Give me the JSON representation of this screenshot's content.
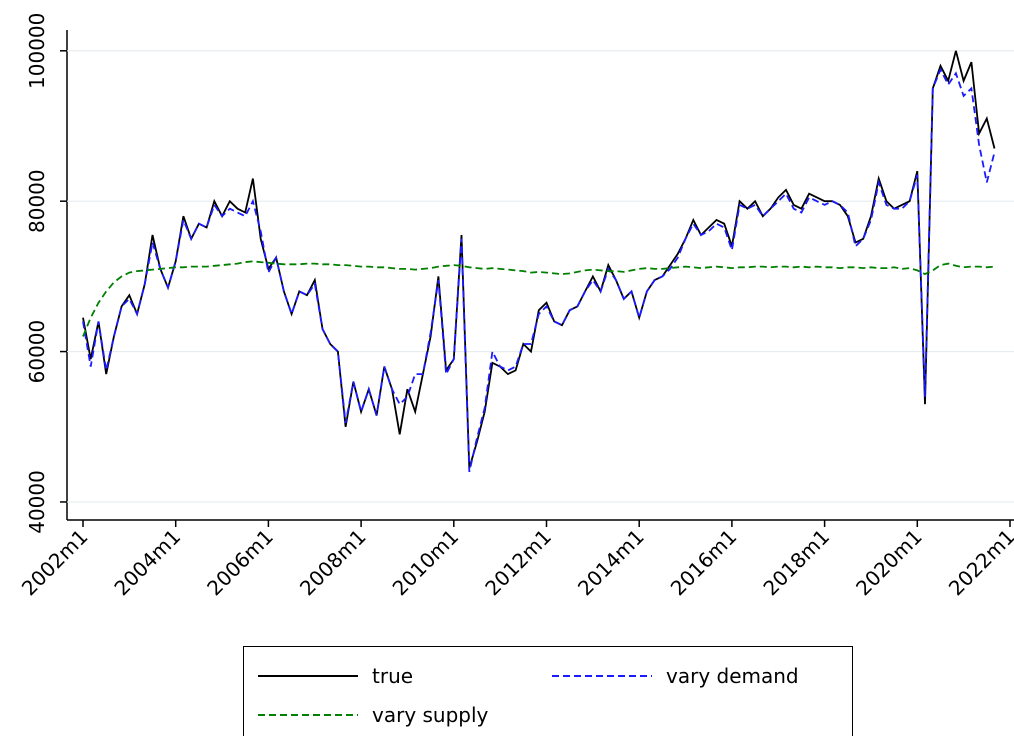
{
  "chart_data": {
    "type": "line",
    "categories": [
      "2002m1",
      null,
      null,
      null,
      null,
      null,
      null,
      null,
      null,
      null,
      null,
      null,
      "2004m1",
      null,
      null,
      null,
      null,
      null,
      null,
      null,
      null,
      null,
      null,
      null,
      "2006m1",
      null,
      null,
      null,
      null,
      null,
      null,
      null,
      null,
      null,
      null,
      null,
      "2008m1",
      null,
      null,
      null,
      null,
      null,
      null,
      null,
      null,
      null,
      null,
      null,
      "2010m1",
      null,
      null,
      null,
      null,
      null,
      null,
      null,
      null,
      null,
      null,
      null,
      "2012m1",
      null,
      null,
      null,
      null,
      null,
      null,
      null,
      null,
      null,
      null,
      null,
      "2014m1",
      null,
      null,
      null,
      null,
      null,
      null,
      null,
      null,
      null,
      null,
      null,
      "2016m1",
      null,
      null,
      null,
      null,
      null,
      null,
      null,
      null,
      null,
      null,
      null,
      "2018m1",
      null,
      null,
      null,
      null,
      null,
      null,
      null,
      null,
      null,
      null,
      null,
      "2020m1",
      null,
      null,
      null,
      null,
      null,
      null,
      null,
      null,
      null,
      null,
      null,
      "2022m1"
    ],
    "series": [
      {
        "name": "true",
        "color": "#000000",
        "dash": "none",
        "values": [
          64500,
          59000,
          64000,
          57000,
          62000,
          66000,
          67500,
          65000,
          69000,
          75500,
          71000,
          68500,
          72000,
          78000,
          75000,
          77000,
          76500,
          80000,
          78000,
          80000,
          79000,
          78500,
          83000,
          75000,
          71000,
          72500,
          68000,
          65000,
          68000,
          67500,
          69500,
          63000,
          61000,
          60000,
          50000,
          56000,
          52000,
          55000,
          51500,
          58000,
          55000,
          49000,
          55000,
          52000,
          57000,
          62000,
          70000,
          57500,
          59000,
          75500,
          44500,
          48000,
          52000,
          58500,
          58000,
          57000,
          57500,
          61000,
          60000,
          65500,
          66500,
          64000,
          63500,
          65500,
          66000,
          68000,
          70000,
          68000,
          71500,
          69500,
          67000,
          68000,
          64500,
          68000,
          69500,
          70000,
          71500,
          73000,
          75000,
          77500,
          75500,
          76500,
          77500,
          77000,
          74000,
          80000,
          79000,
          80000,
          78000,
          79000,
          80500,
          81500,
          79500,
          79000,
          81000,
          80500,
          80000,
          80000,
          79500,
          78000,
          74500,
          75000,
          78000,
          83000,
          80000,
          79000,
          79500,
          80000,
          84000,
          53000,
          95000,
          98000,
          96000,
          100000,
          96000,
          98500,
          89000,
          91000,
          87000,
          null,
          null
        ]
      },
      {
        "name": "vary demand",
        "color": "#1a1aff",
        "dash": "dashed",
        "values": [
          64000,
          58000,
          64000,
          57500,
          62000,
          66000,
          67000,
          65000,
          69000,
          74500,
          71000,
          68500,
          72000,
          77500,
          75000,
          77000,
          76500,
          79500,
          78000,
          79000,
          78500,
          78000,
          80000,
          76000,
          70500,
          72500,
          68000,
          65000,
          68000,
          67500,
          69000,
          63000,
          61000,
          60000,
          50500,
          56000,
          52000,
          55000,
          51500,
          58000,
          55000,
          53000,
          54000,
          57000,
          57000,
          62500,
          69500,
          57000,
          59000,
          75000,
          44000,
          48500,
          52500,
          60000,
          58000,
          57500,
          58000,
          61000,
          61000,
          65000,
          66000,
          64000,
          63500,
          65500,
          66000,
          68000,
          69500,
          68000,
          71000,
          69500,
          67000,
          68000,
          64500,
          68000,
          69500,
          70000,
          71000,
          72500,
          75000,
          77000,
          75500,
          76000,
          77000,
          76500,
          73500,
          79500,
          79000,
          79500,
          78000,
          79000,
          80000,
          81000,
          79000,
          78500,
          80500,
          80000,
          79500,
          80000,
          79500,
          78500,
          74000,
          75000,
          77500,
          82500,
          79500,
          79000,
          79000,
          80000,
          83500,
          54000,
          95000,
          97500,
          95500,
          97000,
          94000,
          95000,
          87500,
          82500,
          86500,
          null,
          null
        ]
      },
      {
        "name": "vary supply",
        "color": "#008000",
        "dash": "dashed",
        "values": [
          62000,
          64500,
          66500,
          68000,
          69200,
          70000,
          70500,
          70700,
          70800,
          70900,
          71000,
          71100,
          71200,
          71200,
          71300,
          71300,
          71300,
          71400,
          71500,
          71600,
          71700,
          71900,
          72000,
          71900,
          71800,
          71700,
          71600,
          71600,
          71600,
          71700,
          71700,
          71600,
          71600,
          71500,
          71500,
          71400,
          71300,
          71300,
          71200,
          71200,
          71100,
          71000,
          71000,
          70900,
          71000,
          71100,
          71300,
          71400,
          71500,
          71400,
          71200,
          71100,
          71000,
          71100,
          71000,
          70900,
          70800,
          70700,
          70500,
          70600,
          70500,
          70400,
          70300,
          70400,
          70600,
          70800,
          70900,
          70800,
          70700,
          70700,
          70600,
          70800,
          71000,
          71100,
          71000,
          71000,
          71100,
          71200,
          71300,
          71200,
          71100,
          71200,
          71300,
          71200,
          71100,
          71200,
          71200,
          71300,
          71300,
          71200,
          71300,
          71300,
          71200,
          71300,
          71200,
          71300,
          71200,
          71200,
          71100,
          71200,
          71200,
          71100,
          71200,
          71100,
          71100,
          71200,
          71000,
          71100,
          70800,
          70300,
          70800,
          71500,
          71700,
          71400,
          71200,
          71300,
          71300,
          71200,
          71300,
          null,
          null
        ]
      }
    ],
    "ylim": [
      37600,
      102100
    ],
    "yticks": [
      40000,
      60000,
      80000,
      100000
    ],
    "grid": true,
    "legend": "bottom"
  }
}
